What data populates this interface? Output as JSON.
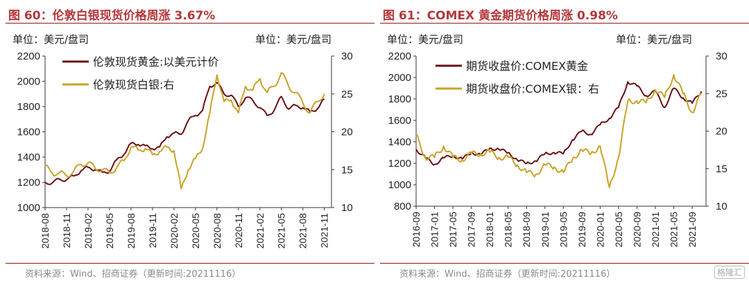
{
  "panels": [
    {
      "title": "图 60：伦敦白银现货价格周涨 3.67%",
      "unit_left": "单位：美元/盘司",
      "unit_right": "单位：美元/盘司",
      "source": "资料来源：Wind、招商证券（更新时间:20211116）",
      "colors": {
        "primary": "#6b0f14",
        "secondary": "#c9a227",
        "border": "#8b1a1a"
      }
    },
    {
      "title": "图 61：COMEX 黄金期货价格周涨 0.98%",
      "unit_left": "单位：美元/盘司",
      "unit_right": "单位：美元/盘司",
      "source": "资料来源：Wind、招商证券（更新时间:20211116）",
      "colors": {
        "primary": "#6b0f14",
        "secondary": "#c9a227",
        "border": "#8b1a1a"
      }
    }
  ],
  "watermark": "格隆汇",
  "chart_data": [
    {
      "type": "line",
      "x_tick_labels": [
        "2018-08",
        "2018-11",
        "2019-02",
        "2019-05",
        "2019-08",
        "2019-11",
        "2020-02",
        "2020-05",
        "2020-08",
        "2020-11",
        "2021-02",
        "2021-05",
        "2021-08",
        "2021-11"
      ],
      "left_axis": {
        "ylim": [
          1000,
          2200
        ],
        "ticks": [
          1000,
          1200,
          1400,
          1600,
          1800,
          2000,
          2200
        ]
      },
      "right_axis": {
        "ylim": [
          10,
          30
        ],
        "ticks": [
          10,
          15,
          20,
          25,
          30
        ]
      },
      "grid": false,
      "legend_position": "top-left",
      "series": [
        {
          "name": "伦敦现货黄金:以美元计价",
          "axis": "left",
          "x": [
            "2018-08",
            "2018-09",
            "2018-10",
            "2018-11",
            "2018-12",
            "2019-01",
            "2019-02",
            "2019-03",
            "2019-04",
            "2019-05",
            "2019-06",
            "2019-07",
            "2019-08",
            "2019-09",
            "2019-10",
            "2019-11",
            "2019-12",
            "2020-01",
            "2020-02",
            "2020-03",
            "2020-04",
            "2020-05",
            "2020-06",
            "2020-07",
            "2020-08",
            "2020-09",
            "2020-10",
            "2020-11",
            "2020-12",
            "2021-01",
            "2021-02",
            "2021-03",
            "2021-04",
            "2021-05",
            "2021-06",
            "2021-07",
            "2021-08",
            "2021-09",
            "2021-10",
            "2021-11"
          ],
          "values": [
            1200,
            1195,
            1225,
            1220,
            1250,
            1290,
            1320,
            1300,
            1280,
            1285,
            1380,
            1420,
            1510,
            1500,
            1490,
            1465,
            1480,
            1560,
            1590,
            1580,
            1690,
            1730,
            1770,
            1960,
            1990,
            1900,
            1890,
            1800,
            1870,
            1850,
            1790,
            1730,
            1770,
            1880,
            1780,
            1810,
            1790,
            1760,
            1780,
            1860
          ]
        },
        {
          "name": "伦敦现货白银:右",
          "axis": "right",
          "x": [
            "2018-08",
            "2018-09",
            "2018-10",
            "2018-11",
            "2018-12",
            "2019-01",
            "2019-02",
            "2019-03",
            "2019-04",
            "2019-05",
            "2019-06",
            "2019-07",
            "2019-08",
            "2019-09",
            "2019-10",
            "2019-11",
            "2019-12",
            "2020-01",
            "2020-02",
            "2020-03",
            "2020-04",
            "2020-05",
            "2020-06",
            "2020-07",
            "2020-08",
            "2020-09",
            "2020-10",
            "2020-11",
            "2020-12",
            "2021-01",
            "2021-02",
            "2021-03",
            "2021-04",
            "2021-05",
            "2021-06",
            "2021-07",
            "2021-08",
            "2021-09",
            "2021-10",
            "2021-11"
          ],
          "values": [
            15.5,
            14.5,
            14.6,
            14.2,
            14.8,
            15.7,
            15.9,
            15.2,
            15.0,
            14.6,
            15.3,
            16.2,
            18.0,
            17.6,
            17.8,
            17.0,
            17.4,
            18.0,
            17.5,
            12.5,
            15.0,
            16.5,
            17.8,
            22.5,
            27.5,
            24.0,
            24.2,
            22.5,
            26.0,
            25.5,
            27.0,
            25.2,
            26.0,
            27.8,
            26.0,
            25.2,
            23.8,
            22.5,
            24.0,
            25.0
          ]
        }
      ]
    },
    {
      "type": "line",
      "x_tick_labels": [
        "2016-09",
        "2017-01",
        "2017-05",
        "2017-09",
        "2018-01",
        "2018-05",
        "2018-09",
        "2019-01",
        "2019-05",
        "2019-09",
        "2020-01",
        "2020-05",
        "2020-09",
        "2021-01",
        "2021-05",
        "2021-09"
      ],
      "left_axis": {
        "ylim": [
          800,
          2200
        ],
        "ticks": [
          800,
          1000,
          1200,
          1400,
          1600,
          1800,
          2000,
          2200
        ]
      },
      "right_axis": {
        "ylim": [
          10,
          30
        ],
        "ticks": [
          10,
          15,
          20,
          25,
          30
        ]
      },
      "grid": false,
      "legend_position": "top-left",
      "series": [
        {
          "name": "期货收盘价:COMEX黄金",
          "axis": "left",
          "x": [
            "2016-09",
            "2016-11",
            "2017-01",
            "2017-03",
            "2017-05",
            "2017-07",
            "2017-09",
            "2017-11",
            "2018-01",
            "2018-03",
            "2018-05",
            "2018-07",
            "2018-09",
            "2018-11",
            "2019-01",
            "2019-03",
            "2019-05",
            "2019-07",
            "2019-09",
            "2019-11",
            "2020-01",
            "2020-03",
            "2020-05",
            "2020-07",
            "2020-09",
            "2020-11",
            "2021-01",
            "2021-03",
            "2021-05",
            "2021-07",
            "2021-09",
            "2021-11"
          ],
          "values": [
            1330,
            1250,
            1190,
            1250,
            1270,
            1240,
            1300,
            1280,
            1340,
            1330,
            1300,
            1230,
            1200,
            1220,
            1290,
            1300,
            1290,
            1420,
            1500,
            1470,
            1560,
            1620,
            1720,
            1960,
            1920,
            1830,
            1870,
            1720,
            1900,
            1810,
            1760,
            1870
          ]
        },
        {
          "name": "期货收盘价:COMEX银：右",
          "axis": "right",
          "x": [
            "2016-09",
            "2016-11",
            "2017-01",
            "2017-03",
            "2017-05",
            "2017-07",
            "2017-09",
            "2017-11",
            "2018-01",
            "2018-03",
            "2018-05",
            "2018-07",
            "2018-09",
            "2018-11",
            "2019-01",
            "2019-03",
            "2019-05",
            "2019-07",
            "2019-09",
            "2019-11",
            "2020-01",
            "2020-03",
            "2020-05",
            "2020-07",
            "2020-09",
            "2020-11",
            "2021-01",
            "2021-03",
            "2021-05",
            "2021-07",
            "2021-09",
            "2021-11"
          ],
          "values": [
            19.5,
            16.5,
            16.5,
            18.0,
            16.5,
            16.2,
            17.0,
            17.0,
            17.2,
            16.5,
            16.5,
            15.5,
            14.5,
            14.2,
            15.5,
            15.2,
            14.5,
            16.3,
            17.5,
            17.0,
            18.0,
            12.5,
            16.5,
            24.0,
            24.0,
            23.8,
            25.5,
            24.5,
            27.5,
            25.0,
            22.5,
            25.0
          ]
        }
      ]
    }
  ]
}
